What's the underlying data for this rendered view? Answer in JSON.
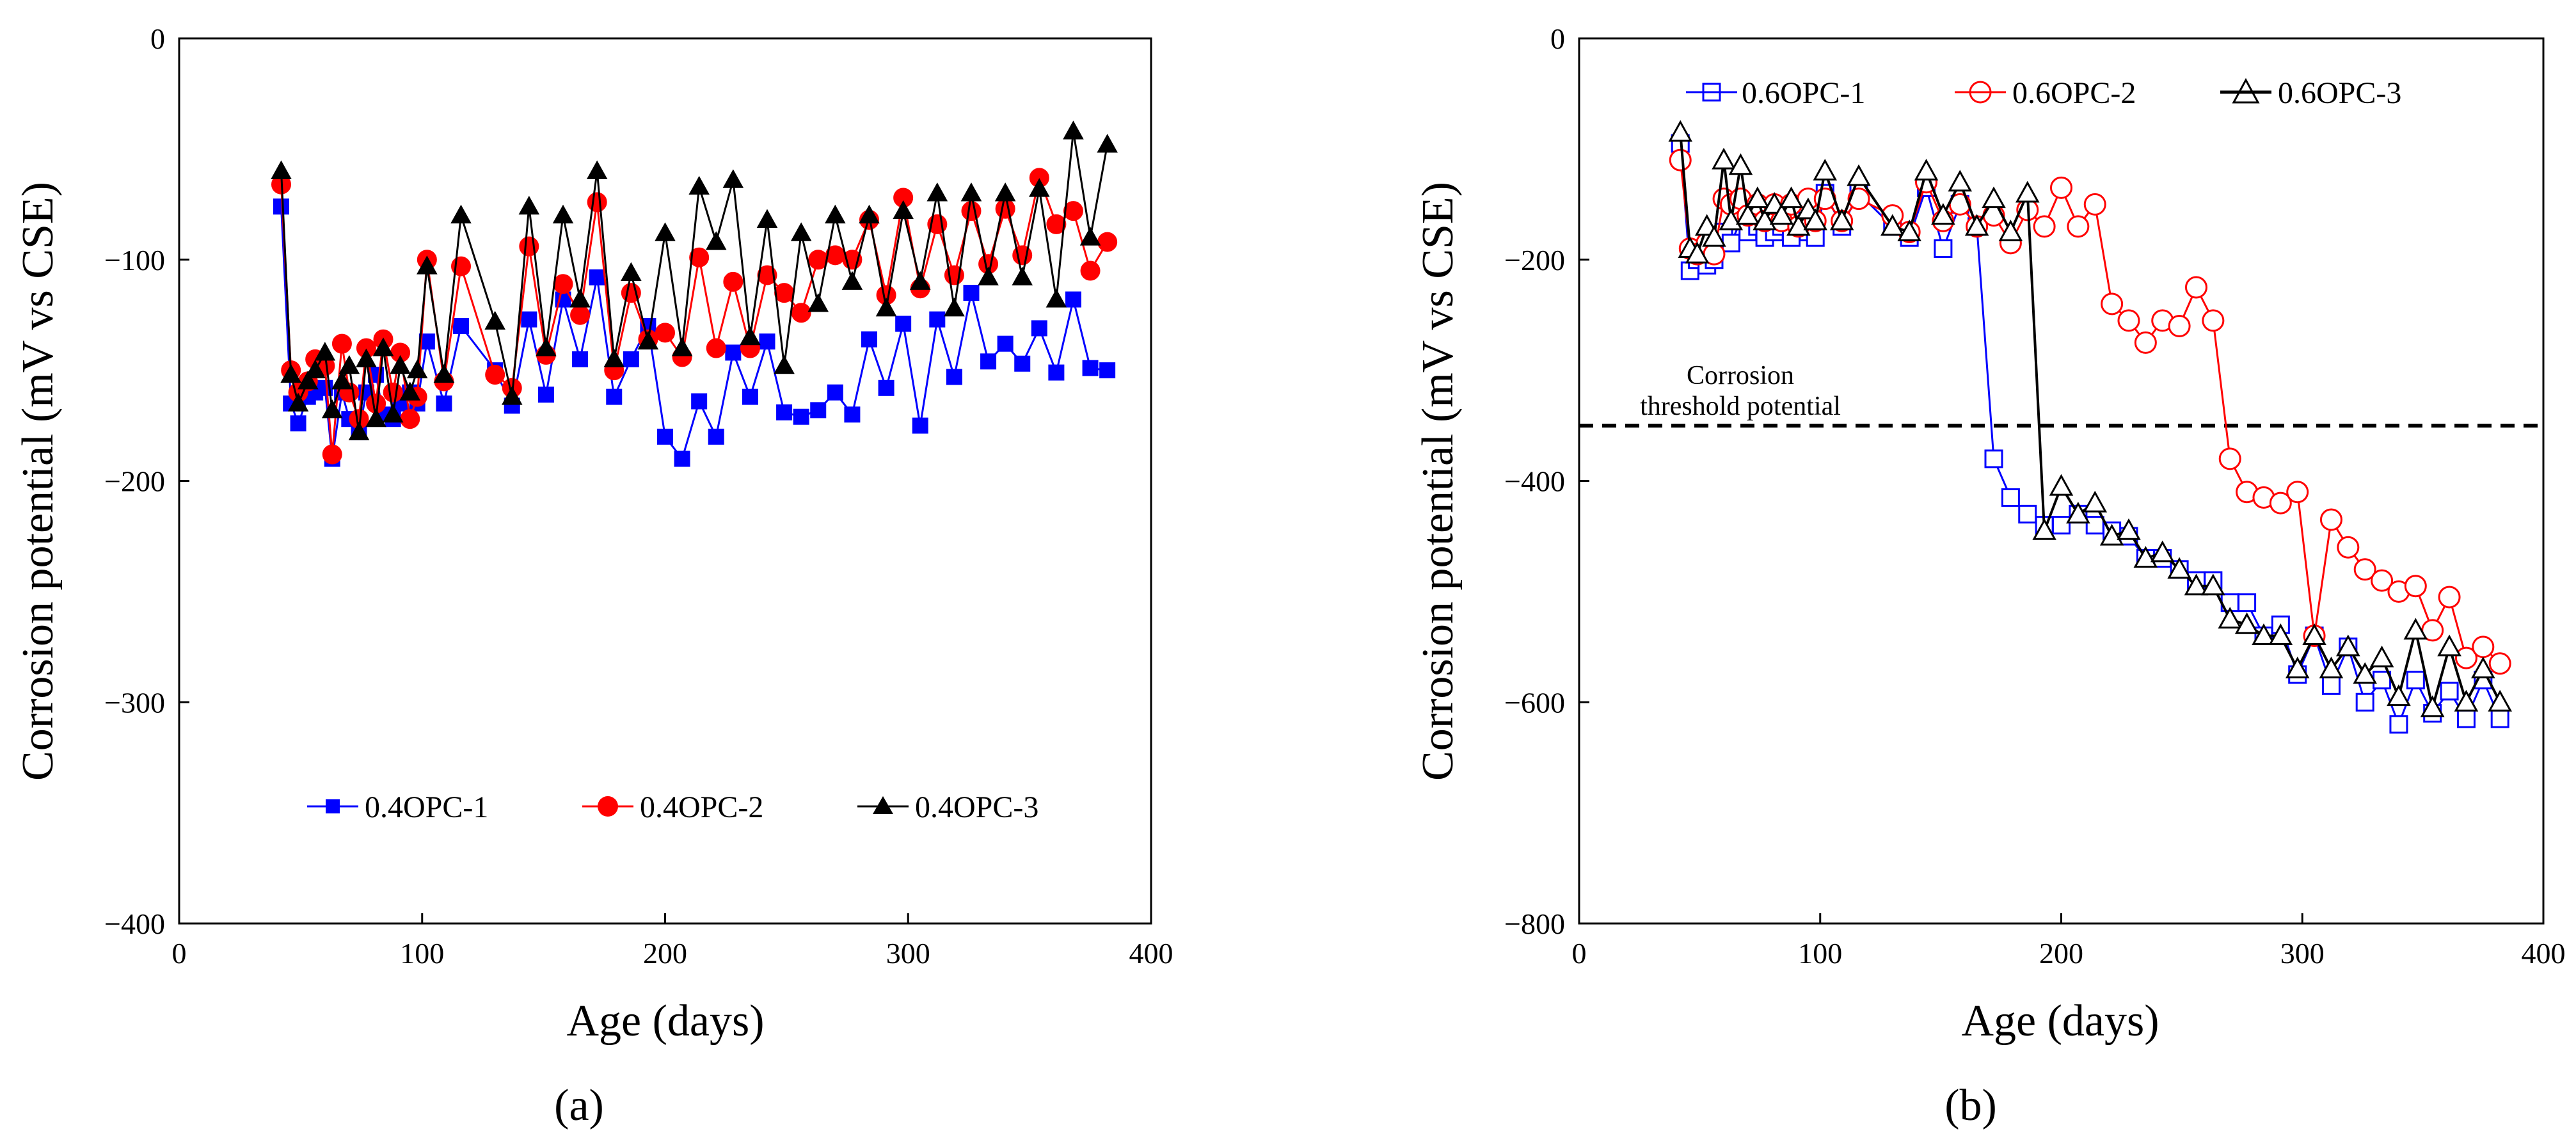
{
  "chart_data": [
    {
      "type": "line",
      "panel_label": "(a)",
      "title": "",
      "xlabel": "Age (days)",
      "ylabel": "Corrosion potential (mV vs CSE)",
      "xlim": [
        0,
        400
      ],
      "ylim": [
        -400,
        0
      ],
      "xticks": [
        0,
        100,
        200,
        300,
        400
      ],
      "yticks": [
        0,
        -100,
        -200,
        -300,
        -400
      ],
      "ytick_labels": [
        "0",
        "−100",
        "−200",
        "−300",
        "−400"
      ],
      "grid": false,
      "legend": "bottom-inside",
      "series": [
        {
          "name": "0.4OPC-1",
          "color": "#0000ff",
          "marker": "square",
          "filled": true,
          "x": [
            42,
            46,
            49,
            53,
            56,
            60,
            63,
            67,
            70,
            74,
            77,
            81,
            84,
            88,
            91,
            95,
            98,
            102,
            109,
            116,
            130,
            137,
            144,
            151,
            158,
            165,
            172,
            179,
            186,
            193,
            200,
            207,
            214,
            221,
            228,
            235,
            242,
            249,
            256,
            263,
            270,
            277,
            284,
            291,
            298,
            305,
            312,
            319,
            326,
            333,
            340,
            347,
            354,
            361,
            368,
            375,
            382
          ],
          "y": [
            -76,
            -165,
            -174,
            -162,
            -160,
            -158,
            -190,
            -160,
            -172,
            -178,
            -160,
            -152,
            -170,
            -172,
            -165,
            -160,
            -165,
            -137,
            -165,
            -130,
            -150,
            -166,
            -127,
            -161,
            -118,
            -145,
            -108,
            -162,
            -145,
            -130,
            -180,
            -190,
            -164,
            -180,
            -142,
            -162,
            -137,
            -169,
            -171,
            -168,
            -160,
            -170,
            -136,
            -158,
            -129,
            -175,
            -127,
            -153,
            -115,
            -146,
            -138,
            -147,
            -131,
            -151,
            -118,
            -149,
            -150
          ]
        },
        {
          "name": "0.4OPC-2",
          "color": "#ff0000",
          "marker": "circle",
          "filled": true,
          "x": [
            42,
            46,
            49,
            53,
            56,
            60,
            63,
            67,
            70,
            74,
            77,
            81,
            84,
            88,
            91,
            95,
            98,
            102,
            109,
            116,
            130,
            137,
            144,
            151,
            158,
            165,
            172,
            179,
            186,
            193,
            200,
            207,
            214,
            221,
            228,
            235,
            242,
            249,
            256,
            263,
            270,
            277,
            284,
            291,
            298,
            305,
            312,
            319,
            326,
            333,
            340,
            347,
            354,
            361,
            368,
            375,
            382
          ],
          "y": [
            -66,
            -150,
            -160,
            -155,
            -145,
            -148,
            -188,
            -138,
            -160,
            -172,
            -140,
            -165,
            -136,
            -160,
            -142,
            -172,
            -162,
            -100,
            -155,
            -103,
            -152,
            -158,
            -94,
            -143,
            -111,
            -125,
            -74,
            -150,
            -115,
            -136,
            -133,
            -144,
            -99,
            -140,
            -110,
            -140,
            -107,
            -115,
            -124,
            -100,
            -98,
            -100,
            -82,
            -116,
            -72,
            -113,
            -84,
            -107,
            -78,
            -102,
            -77,
            -98,
            -63,
            -84,
            -78,
            -105,
            -92
          ]
        },
        {
          "name": "0.4OPC-3",
          "color": "#000000",
          "marker": "triangle",
          "filled": true,
          "x": [
            42,
            46,
            49,
            53,
            56,
            60,
            63,
            67,
            70,
            74,
            77,
            81,
            84,
            88,
            91,
            95,
            98,
            102,
            109,
            116,
            130,
            137,
            144,
            151,
            158,
            165,
            172,
            179,
            186,
            193,
            200,
            207,
            214,
            221,
            228,
            235,
            242,
            249,
            256,
            263,
            270,
            277,
            284,
            291,
            298,
            305,
            312,
            319,
            326,
            333,
            340,
            347,
            354,
            361,
            368,
            375,
            382
          ],
          "y": [
            -60,
            -152,
            -165,
            -155,
            -150,
            -142,
            -168,
            -155,
            -148,
            -178,
            -145,
            -172,
            -140,
            -170,
            -148,
            -160,
            -150,
            -103,
            -152,
            -80,
            -128,
            -162,
            -76,
            -140,
            -80,
            -118,
            -60,
            -145,
            -106,
            -137,
            -88,
            -140,
            -67,
            -92,
            -64,
            -135,
            -82,
            -148,
            -88,
            -120,
            -80,
            -110,
            -80,
            -122,
            -78,
            -110,
            -70,
            -122,
            -70,
            -108,
            -70,
            -108,
            -68,
            -118,
            -42,
            -90,
            -48
          ]
        }
      ],
      "legend_entries": [
        "0.4OPC-1",
        "0.4OPC-2",
        "0.4OPC-3"
      ]
    },
    {
      "type": "line",
      "panel_label": "(b)",
      "title": "",
      "xlabel": "Age (days)",
      "ylabel": "Corrosion potential (mV vs CSE)",
      "xlim": [
        0,
        400
      ],
      "ylim": [
        -800,
        0
      ],
      "xticks": [
        0,
        100,
        200,
        300,
        400
      ],
      "yticks": [
        0,
        -200,
        -400,
        -600,
        -800
      ],
      "ytick_labels": [
        "0",
        "−200",
        "−400",
        "−600",
        "−800"
      ],
      "grid": false,
      "legend": "top-inside",
      "threshold": {
        "value": -350,
        "label_line1": "Corrosion",
        "label_line2": "threshold potential"
      },
      "series": [
        {
          "name": "0.6OPC-1",
          "color": "#0000ff",
          "marker": "square",
          "filled": false,
          "x": [
            42,
            46,
            49,
            53,
            56,
            60,
            63,
            67,
            70,
            74,
            77,
            81,
            84,
            88,
            91,
            95,
            98,
            102,
            109,
            116,
            130,
            137,
            144,
            151,
            158,
            165,
            172,
            179,
            186,
            193,
            200,
            207,
            214,
            221,
            228,
            235,
            242,
            249,
            256,
            263,
            270,
            277,
            284,
            291,
            298,
            305,
            312,
            319,
            326,
            333,
            340,
            347,
            354,
            361,
            368,
            375,
            382
          ],
          "y": [
            -95,
            -210,
            -200,
            -205,
            -200,
            -175,
            -185,
            -165,
            -175,
            -170,
            -180,
            -175,
            -170,
            -180,
            -165,
            -175,
            -180,
            -140,
            -170,
            -140,
            -170,
            -180,
            -135,
            -190,
            -150,
            -170,
            -380,
            -415,
            -430,
            -440,
            -440,
            -430,
            -440,
            -445,
            -450,
            -470,
            -470,
            -480,
            -490,
            -490,
            -510,
            -510,
            -540,
            -530,
            -575,
            -540,
            -585,
            -550,
            -600,
            -580,
            -620,
            -580,
            -610,
            -590,
            -615,
            -580,
            -615
          ]
        },
        {
          "name": "0.6OPC-2",
          "color": "#ff0000",
          "marker": "circle",
          "filled": false,
          "x": [
            42,
            46,
            49,
            53,
            56,
            60,
            63,
            67,
            70,
            74,
            77,
            81,
            84,
            88,
            91,
            95,
            98,
            102,
            109,
            116,
            130,
            137,
            144,
            151,
            158,
            165,
            172,
            179,
            186,
            193,
            200,
            207,
            214,
            221,
            228,
            235,
            242,
            249,
            256,
            263,
            270,
            277,
            284,
            291,
            298,
            305,
            312,
            319,
            326,
            333,
            340,
            347,
            354,
            361,
            368,
            375,
            382
          ],
          "y": [
            -110,
            -190,
            -195,
            -185,
            -195,
            -145,
            -150,
            -145,
            -160,
            -150,
            -165,
            -150,
            -165,
            -150,
            -170,
            -145,
            -165,
            -145,
            -165,
            -145,
            -160,
            -175,
            -130,
            -165,
            -150,
            -170,
            -160,
            -185,
            -155,
            -170,
            -135,
            -170,
            -150,
            -240,
            -255,
            -275,
            -255,
            -260,
            -225,
            -255,
            -380,
            -410,
            -415,
            -420,
            -410,
            -540,
            -435,
            -460,
            -480,
            -490,
            -500,
            -495,
            -535,
            -505,
            -560,
            -550,
            -565
          ]
        },
        {
          "name": "0.6OPC-3",
          "color": "#000000",
          "marker": "triangle",
          "filled": false,
          "x": [
            42,
            46,
            49,
            53,
            56,
            60,
            63,
            67,
            70,
            74,
            77,
            81,
            84,
            88,
            91,
            95,
            98,
            102,
            109,
            116,
            130,
            137,
            144,
            151,
            158,
            165,
            172,
            179,
            186,
            193,
            200,
            207,
            214,
            221,
            228,
            235,
            242,
            249,
            256,
            263,
            270,
            277,
            284,
            291,
            298,
            305,
            312,
            319,
            326,
            333,
            340,
            347,
            354,
            361,
            368,
            375,
            382
          ],
          "y": [
            -85,
            -190,
            -195,
            -170,
            -180,
            -110,
            -165,
            -115,
            -160,
            -145,
            -165,
            -150,
            -160,
            -145,
            -170,
            -155,
            -165,
            -120,
            -165,
            -125,
            -170,
            -175,
            -120,
            -160,
            -130,
            -170,
            -145,
            -175,
            -140,
            -445,
            -405,
            -430,
            -420,
            -450,
            -445,
            -470,
            -465,
            -480,
            -495,
            -495,
            -525,
            -530,
            -540,
            -540,
            -570,
            -540,
            -570,
            -550,
            -575,
            -560,
            -595,
            -535,
            -605,
            -550,
            -600,
            -570,
            -600
          ]
        }
      ],
      "legend_entries": [
        "0.6OPC-1",
        "0.6OPC-2",
        "0.6OPC-3"
      ]
    }
  ]
}
